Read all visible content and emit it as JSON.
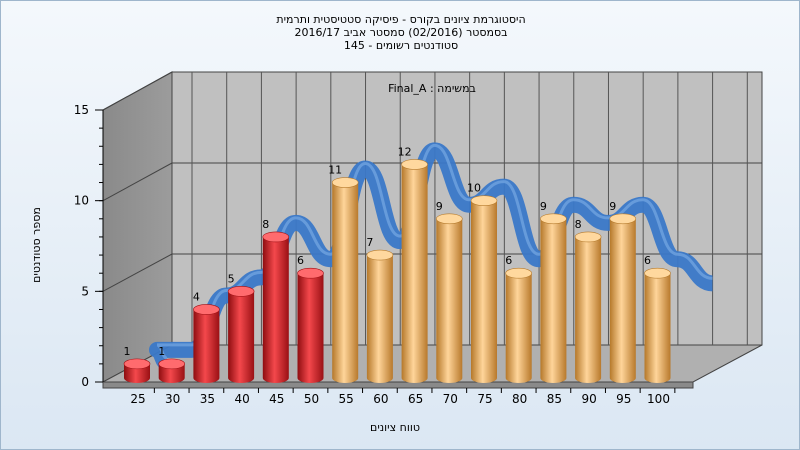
{
  "chart_data": {
    "type": "bar",
    "title_lines": [
      "היסטוגרמת ציונים בקורס - פיסיקה סטטיסטית ותרמית",
      "בסמסטר (02/2016) סמסטר אביב 2016/17",
      "סטודנטים רשומים - 145"
    ],
    "subtitle": "Final_A : במשימה",
    "xlabel": "טווח ציונים",
    "ylabel": "מספר סטודנטים",
    "ylim": [
      0,
      15
    ],
    "y_ticks": [
      "0",
      "5",
      "10",
      "15"
    ],
    "categories": [
      "25",
      "30",
      "35",
      "40",
      "45",
      "50",
      "55",
      "60",
      "65",
      "70",
      "75",
      "80",
      "85",
      "90",
      "95",
      "100"
    ],
    "values": [
      1,
      1,
      4,
      5,
      8,
      6,
      11,
      7,
      12,
      9,
      10,
      6,
      9,
      8,
      9,
      6
    ],
    "bar_colors": [
      "#e8262b",
      "#e8262b",
      "#e8262b",
      "#e8262b",
      "#e8262b",
      "#e8262b",
      "#f0b050",
      "#f0b050",
      "#f0b050",
      "#f0b050",
      "#f0b050",
      "#f0b050",
      "#f0b050",
      "#f0b050",
      "#f0b050",
      "#f0b050"
    ],
    "distribution_curve_color": "#3a78c8",
    "grid": true
  }
}
